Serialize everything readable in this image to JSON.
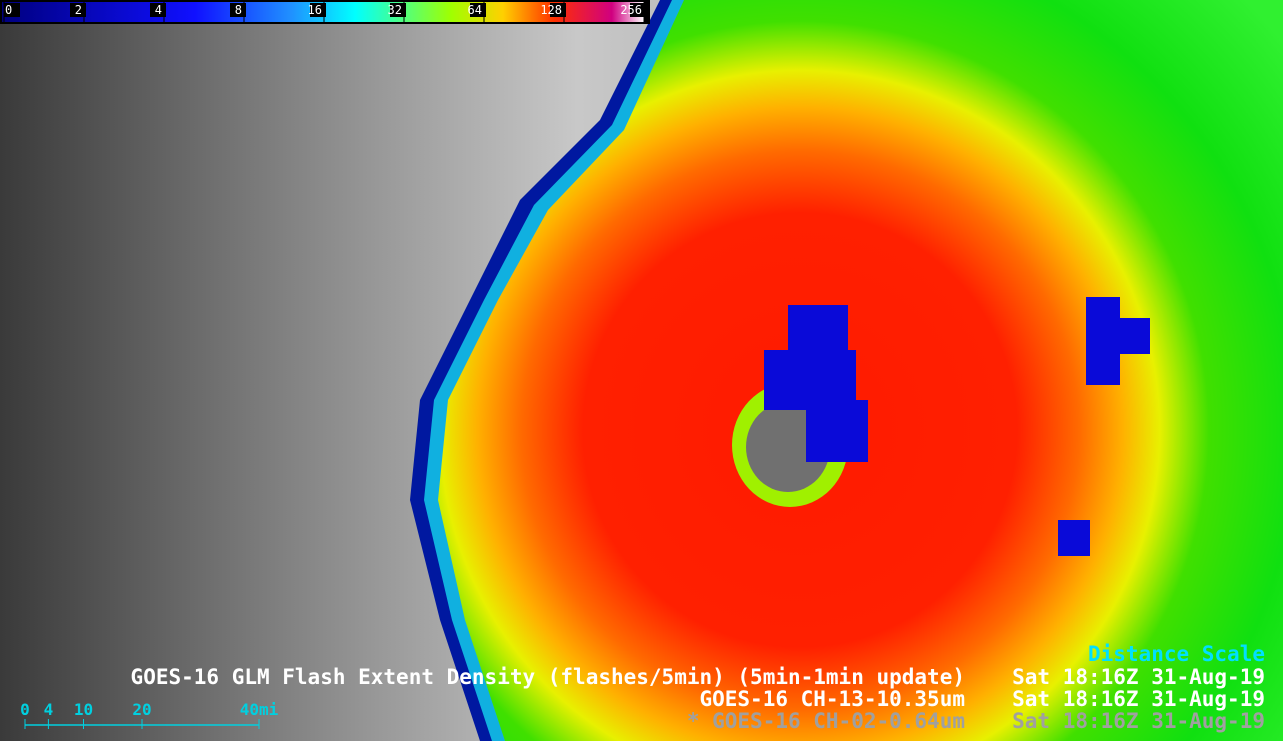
{
  "colorbar": {
    "ticks": [
      0,
      2,
      4,
      8,
      16,
      32,
      64,
      128,
      256
    ]
  },
  "distance_scale": {
    "title": "Distance Scale",
    "ticks": [
      0,
      4,
      10,
      20,
      {
        "value": 40,
        "label": "40mi"
      }
    ]
  },
  "products": [
    {
      "name": "GOES-16 GLM Flash Extent Density (flashes/5min) (5min-1min update)",
      "time": "Sat 18:16Z 31-Aug-19"
    },
    {
      "name": "GOES-16 CH-13-10.35um",
      "time": "Sat 18:16Z 31-Aug-19"
    },
    {
      "name": "* GOES-16 CH-02-0.64um",
      "time": "Sat 18:16Z 31-Aug-19"
    }
  ]
}
